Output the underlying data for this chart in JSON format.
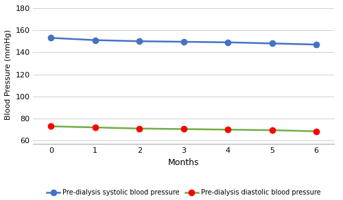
{
  "months": [
    0,
    1,
    2,
    3,
    4,
    5,
    6
  ],
  "systolic": [
    153,
    151,
    150,
    149.5,
    149,
    148,
    147
  ],
  "diastolic": [
    73,
    72,
    71,
    70.5,
    70,
    69.5,
    68.5
  ],
  "systolic_color": "#4472C4",
  "diastolic_line_color": "#70AD47",
  "diastolic_marker_color": "#FF0000",
  "xlabel": "Months",
  "ylabel": "Blood Pressure (mmHg)",
  "ylim": [
    57,
    183
  ],
  "yticks": [
    60,
    80,
    100,
    120,
    140,
    160,
    180
  ],
  "xticks": [
    0,
    1,
    2,
    3,
    4,
    5,
    6
  ],
  "legend_systolic": "Pre-dialysis systolic blood pressure",
  "legend_diastolic": "Pre-dialysis diastolic blood pressure",
  "background_color": "#ffffff",
  "grid_color": "#d0d0d0",
  "marker_size": 6,
  "line_width": 1.8,
  "fig_width": 5.0,
  "fig_height": 2.92,
  "dpi": 100
}
